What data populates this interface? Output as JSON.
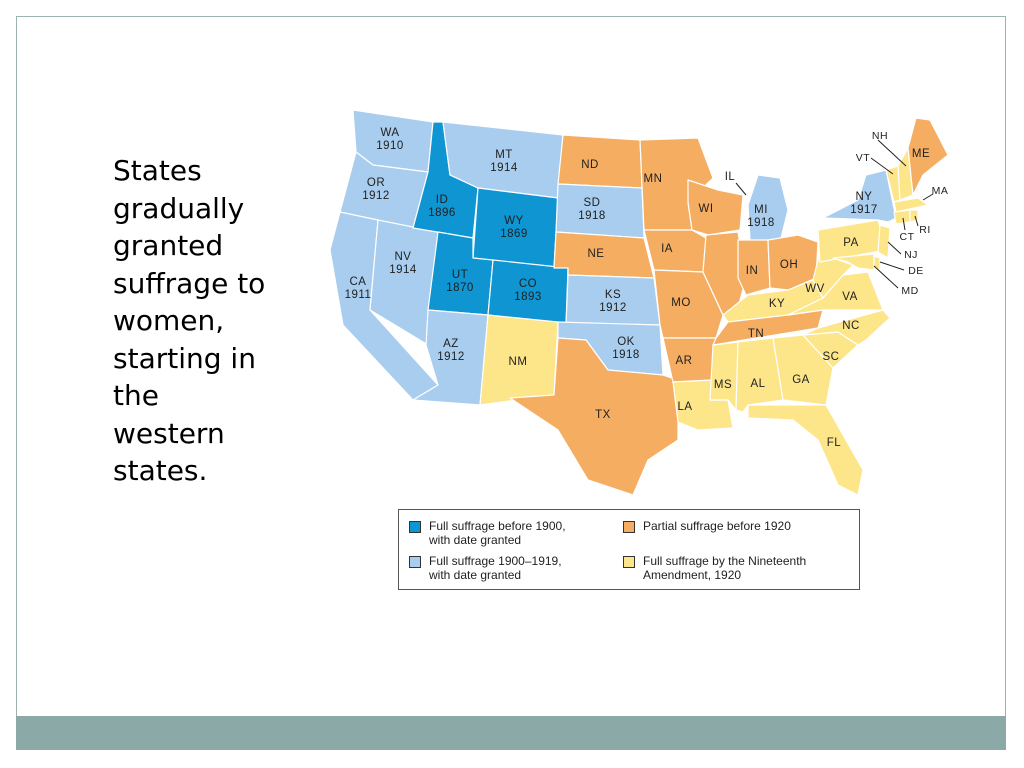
{
  "body_text": "States gradually granted suffrage to women, starting in the western states.",
  "colors": {
    "full_before_1900": "#0e95d2",
    "full_1900_1919": "#a8cdee",
    "partial_before_1920": "#f5ad62",
    "nineteenth_amendment": "#fde58a",
    "footer": "#8aa9a7"
  },
  "states": {
    "WA": {
      "abbr": "WA",
      "year": "1910"
    },
    "OR": {
      "abbr": "OR",
      "year": "1912"
    },
    "CA": {
      "abbr": "CA",
      "year": "1911"
    },
    "NV": {
      "abbr": "NV",
      "year": "1914"
    },
    "ID": {
      "abbr": "ID",
      "year": "1896"
    },
    "MT": {
      "abbr": "MT",
      "year": "1914"
    },
    "WY": {
      "abbr": "WY",
      "year": "1869"
    },
    "UT": {
      "abbr": "UT",
      "year": "1870"
    },
    "CO": {
      "abbr": "CO",
      "year": "1893"
    },
    "AZ": {
      "abbr": "AZ",
      "year": "1912"
    },
    "NM": {
      "abbr": "NM"
    },
    "ND": {
      "abbr": "ND"
    },
    "SD": {
      "abbr": "SD",
      "year": "1918"
    },
    "NE": {
      "abbr": "NE"
    },
    "KS": {
      "abbr": "KS",
      "year": "1912"
    },
    "OK": {
      "abbr": "OK",
      "year": "1918"
    },
    "TX": {
      "abbr": "TX"
    },
    "MN": {
      "abbr": "MN"
    },
    "IA": {
      "abbr": "IA"
    },
    "MO": {
      "abbr": "MO"
    },
    "AR": {
      "abbr": "AR"
    },
    "LA": {
      "abbr": "LA"
    },
    "WI": {
      "abbr": "WI"
    },
    "IL": {
      "abbr": "IL"
    },
    "MI": {
      "abbr": "MI",
      "year": "1918"
    },
    "IN": {
      "abbr": "IN"
    },
    "OH": {
      "abbr": "OH"
    },
    "KY": {
      "abbr": "KY"
    },
    "TN": {
      "abbr": "TN"
    },
    "MS": {
      "abbr": "MS"
    },
    "AL": {
      "abbr": "AL"
    },
    "GA": {
      "abbr": "GA"
    },
    "FL": {
      "abbr": "FL"
    },
    "SC": {
      "abbr": "SC"
    },
    "NC": {
      "abbr": "NC"
    },
    "VA": {
      "abbr": "VA"
    },
    "WV": {
      "abbr": "WV"
    },
    "PA": {
      "abbr": "PA"
    },
    "NY": {
      "abbr": "NY",
      "year": "1917"
    },
    "VT": {
      "abbr": "VT"
    },
    "NH": {
      "abbr": "NH"
    },
    "ME": {
      "abbr": "ME"
    },
    "MA": {
      "abbr": "MA"
    },
    "CT": {
      "abbr": "CT"
    },
    "RI": {
      "abbr": "RI"
    },
    "NJ": {
      "abbr": "NJ"
    },
    "DE": {
      "abbr": "DE"
    },
    "MD": {
      "abbr": "MD"
    }
  },
  "legend": [
    {
      "key": "full_before_1900",
      "label": "Full suffrage before 1900,\nwith date granted"
    },
    {
      "key": "partial_before_1920",
      "label": "Partial suffrage before 1920"
    },
    {
      "key": "full_1900_1919",
      "label": "Full suffrage 1900–1919,\nwith date granted"
    },
    {
      "key": "nineteenth_amendment",
      "label": "Full suffrage by the Nineteenth\nAmendment, 1920"
    }
  ]
}
